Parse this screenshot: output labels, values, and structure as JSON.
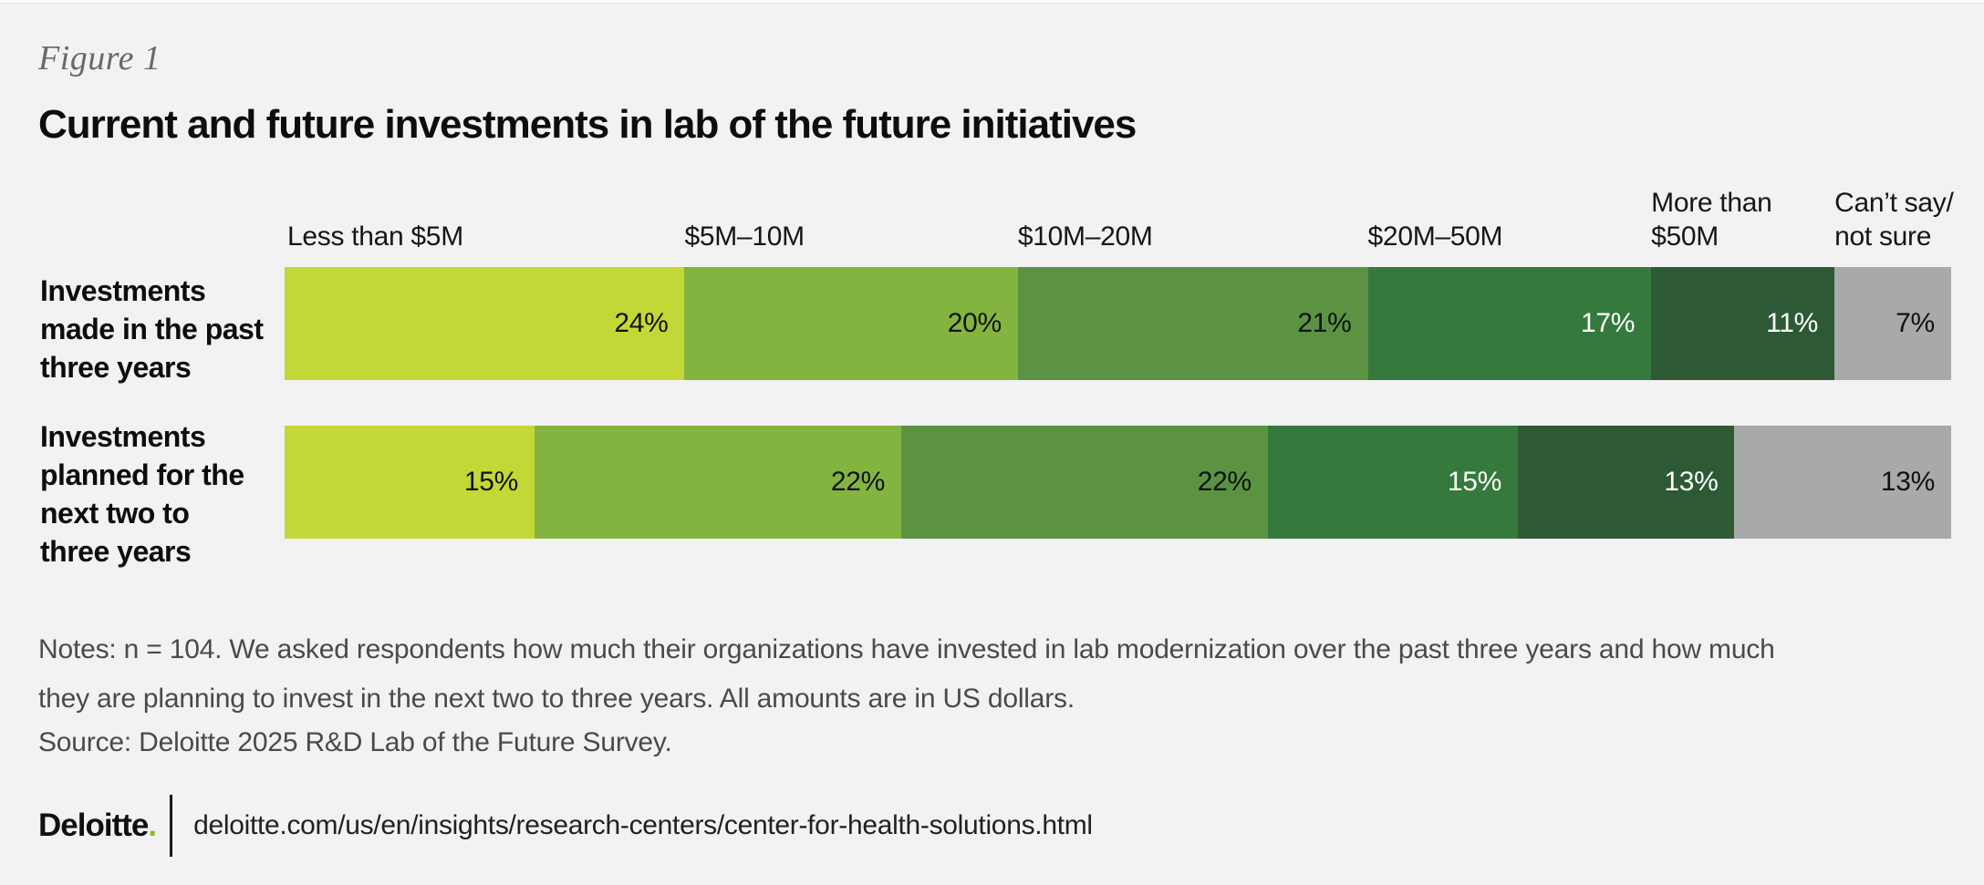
{
  "figure_label": "Figure 1",
  "title": "Current and future investments in lab of the future initiatives",
  "chart_data": {
    "type": "bar",
    "orientation": "horizontal-stacked",
    "unit": "%",
    "xlim": [
      0,
      100
    ],
    "grid": false,
    "legend_position": "category-headers-above-first-bar",
    "category_headers": [
      {
        "label": "Less than $5M",
        "lines": [
          "Less than $5M"
        ]
      },
      {
        "label": "$5M–10M",
        "lines": [
          "$5M–10M"
        ]
      },
      {
        "label": "$10M–20M",
        "lines": [
          "$10M–20M"
        ]
      },
      {
        "label": "$20M–50M",
        "lines": [
          "$20M–50M"
        ]
      },
      {
        "label": "More than $50M",
        "lines": [
          "More than",
          "$50M"
        ]
      },
      {
        "label": "Can’t say/not sure",
        "lines": [
          "Can’t say/",
          "not sure"
        ]
      }
    ],
    "series": [
      {
        "name": "Investments made in the past three years",
        "label_lines": [
          "Investments",
          "made in the past",
          "three years"
        ],
        "values": [
          24,
          20,
          21,
          17,
          11,
          7
        ]
      },
      {
        "name": "Investments planned for the next two to three years",
        "label_lines": [
          "Investments",
          "planned for the",
          "next two to",
          "three years"
        ],
        "values": [
          15,
          22,
          22,
          15,
          13,
          13
        ]
      }
    ],
    "segment_colors": [
      "#c3d836",
      "#84b440",
      "#5b9343",
      "#35793d",
      "#2d5a35",
      "#a8a9ab"
    ],
    "value_text_colors": [
      "#111111",
      "#111111",
      "#111111",
      "#ffffff",
      "#ffffff",
      "#111111"
    ]
  },
  "notes": {
    "lines": [
      "Notes: n = 104. We asked respondents how much their organizations have invested in lab modernization over the past three years and how much",
      "they are planning to invest in the next two to three years. All amounts are in US dollars."
    ]
  },
  "source": "Source: Deloitte 2025 R&D Lab of the Future Survey.",
  "footer": {
    "brand": "Deloitte",
    "brand_period": ".",
    "url": "deloitte.com/us/en/insights/research-centers/center-for-health-solutions.html"
  },
  "colors": {
    "background": "#f2f2f2",
    "accent_green": "#86bc25",
    "figure_label_text": "#696969",
    "title_text": "#0d0d0d",
    "notes_text": "#4a4a4a"
  }
}
